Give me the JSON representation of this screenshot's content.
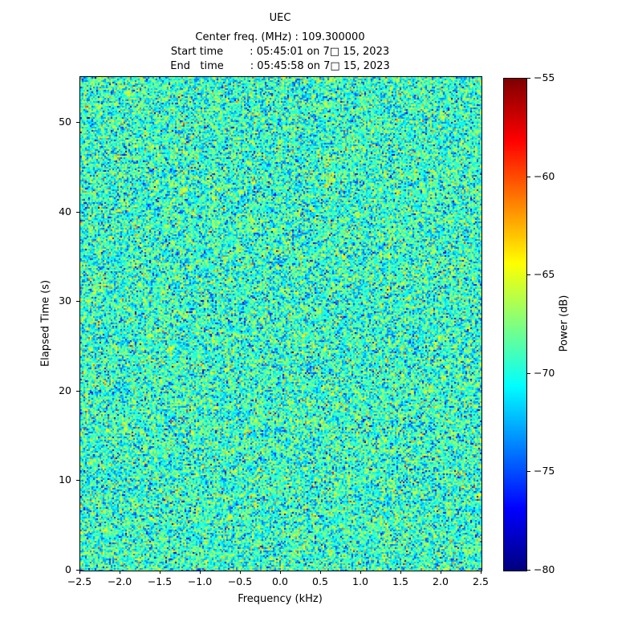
{
  "header": {
    "title": "UEC",
    "line_center_freq": "Center freq. (MHz) : 109.300000",
    "line_start_time": "Start time        : 05:45:01 on 7□ 15, 2023",
    "line_end_time": "End   time        : 05:45:58 on 7□ 15, 2023"
  },
  "chart_data": {
    "type": "heatmap",
    "title": "UEC",
    "center_freq_mhz": "109.300000",
    "start_time": "05:45:01 on 7□ 15, 2023",
    "end_time": "05:45:58 on 7□ 15, 2023",
    "xlabel": "Frequency (kHz)",
    "ylabel": "Elapsed Time (s)",
    "xlim": [
      -2.5,
      2.5
    ],
    "ylim": [
      0,
      55.1
    ],
    "grid": false,
    "xticks": {
      "values": [
        -2.5,
        -2.0,
        -1.5,
        -1.0,
        -0.5,
        0.0,
        0.5,
        1.0,
        1.5,
        2.0,
        2.5
      ],
      "labels": [
        "−2.5",
        "−2.0",
        "−1.5",
        "−1.0",
        "−0.5",
        "0.0",
        "0.5",
        "1.0",
        "1.5",
        "2.0",
        "2.5"
      ]
    },
    "yticks": {
      "values": [
        0,
        10,
        20,
        30,
        40,
        50
      ],
      "labels": [
        "0",
        "10",
        "20",
        "30",
        "40",
        "50"
      ]
    },
    "colorbar": {
      "label": "Power (dB)",
      "colormap": "jet",
      "vmin": -80,
      "vmax": -55,
      "ticks": {
        "values": [
          -80,
          -75,
          -70,
          -65,
          -60,
          -55
        ],
        "labels": [
          "−80",
          "−75",
          "−70",
          "−65",
          "−60",
          "−55"
        ]
      }
    },
    "values": {
      "description": "featureless broadband noise spectrogram; no visible signal, speckle of cyan/green with sparse yellow and dark-blue points",
      "mean_db": -69.5,
      "std_db": 3.0
    }
  }
}
